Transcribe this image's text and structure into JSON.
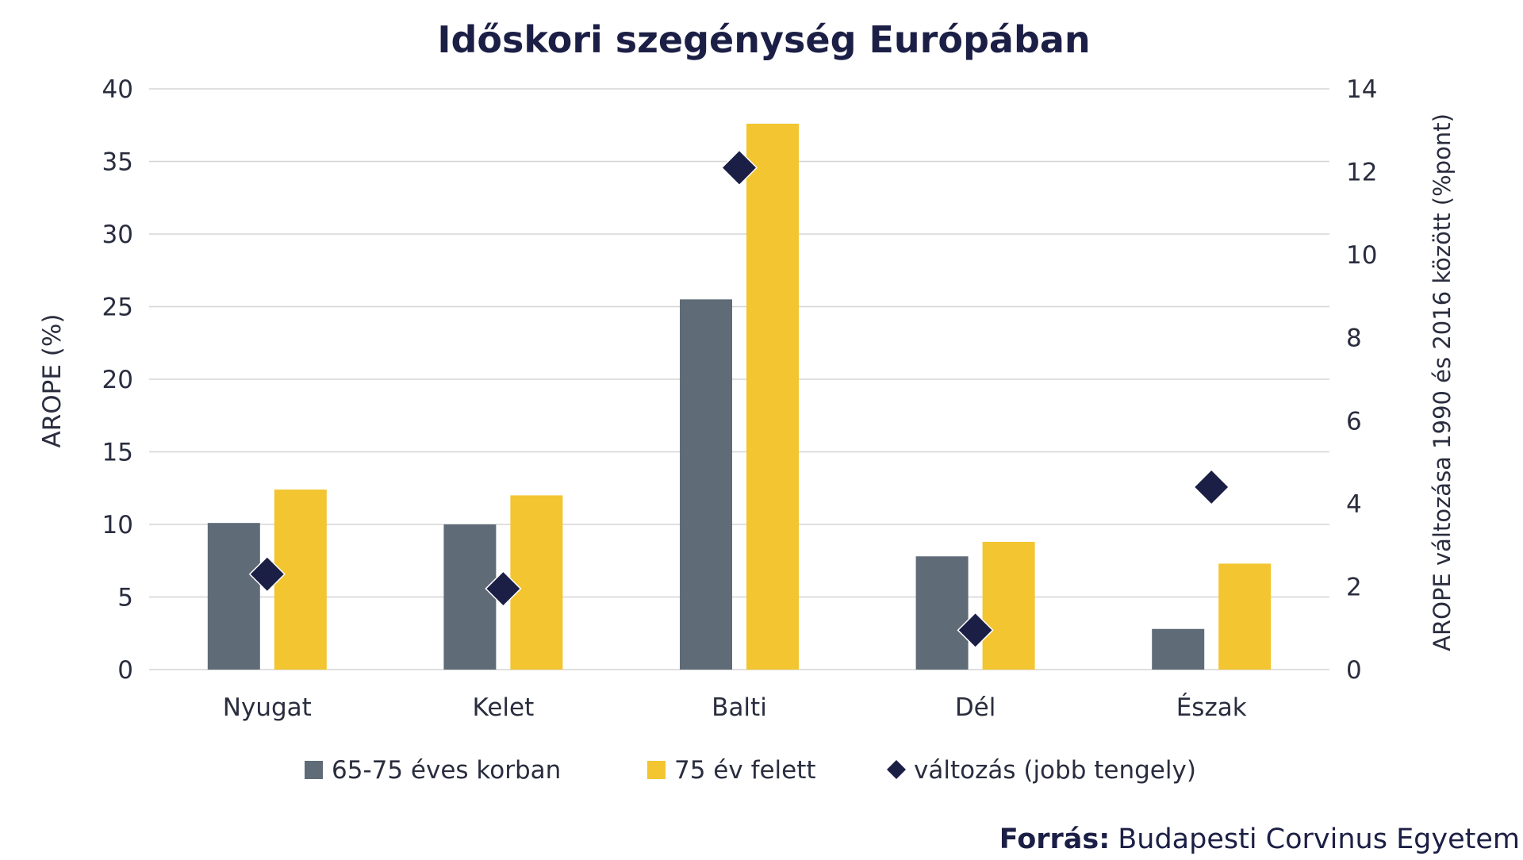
{
  "chart_data": {
    "type": "bar",
    "title": "Időskori szegénység Európában",
    "categories": [
      "Nyugat",
      "Kelet",
      "Balti",
      "Dél",
      "Észak"
    ],
    "ylabel": "AROPE (%)",
    "ylabel_right": "AROPE változása 1990 és 2016 között (%pont)",
    "ylim": [
      0,
      40
    ],
    "yticks": [
      0,
      5,
      10,
      15,
      20,
      25,
      30,
      35,
      40
    ],
    "ylim_right": [
      0,
      14
    ],
    "yticks_right": [
      0,
      2,
      4,
      6,
      8,
      10,
      12,
      14
    ],
    "grid": true,
    "legend_position": "bottom",
    "series": [
      {
        "name": "65-75 éves korban",
        "type": "bar",
        "axis": "left",
        "color": "#5f6b77",
        "values": [
          10.1,
          10.0,
          25.5,
          7.8,
          2.8
        ]
      },
      {
        "name": "75 év felett",
        "type": "bar",
        "axis": "left",
        "color": "#f2c531",
        "values": [
          12.4,
          12.0,
          37.6,
          8.8,
          7.3
        ]
      },
      {
        "name": "változás (jobb tengely)",
        "type": "scatter",
        "marker": "diamond",
        "axis": "right",
        "color": "#1c1f45",
        "values": [
          2.3,
          1.95,
          12.1,
          0.95,
          4.4
        ]
      }
    ]
  },
  "source": {
    "label": "Forrás:",
    "text": "Budapesti Corvinus Egyetem"
  },
  "colors": {
    "title": "#1c1f45",
    "axis_text": "#2a2d3e",
    "grid": "#d5d5d5"
  }
}
